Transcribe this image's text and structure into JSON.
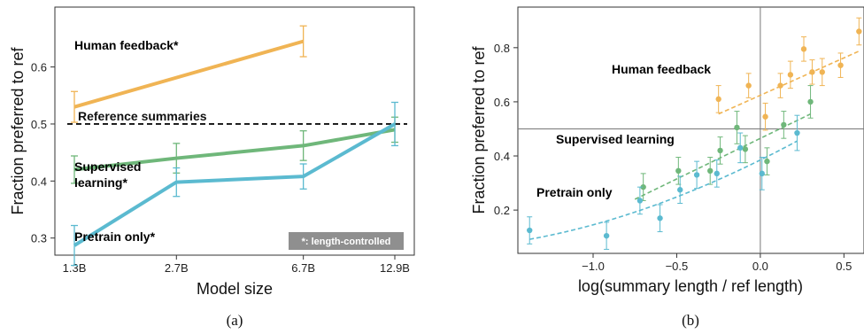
{
  "colors": {
    "human": "#f0b454",
    "supervised": "#6fb77a",
    "pretrain": "#5bbad0",
    "reference": "#111111",
    "note_bg": "#8f8f8f"
  },
  "chart_data": [
    {
      "type": "line",
      "caption": "(a)",
      "xlabel": "Model size",
      "ylabel": "Fraction preferred to ref",
      "x_scale": "log",
      "x_ticks": [
        "1.3B",
        "2.7B",
        "6.7B",
        "12.9B"
      ],
      "y_ticks": [
        0.3,
        0.4,
        0.5,
        0.6
      ],
      "ylim": [
        0.27,
        0.705
      ],
      "grid": false,
      "reference_line": {
        "y": 0.5,
        "label": "Reference summaries"
      },
      "note": "*: length-controlled",
      "series": [
        {
          "name": "Human feedback*",
          "color_key": "human",
          "x": [
            "1.3B",
            "6.7B"
          ],
          "y": [
            0.53,
            0.645
          ],
          "err": [
            0.027,
            0.027
          ]
        },
        {
          "name": "Supervised learning*",
          "color_key": "supervised",
          "x": [
            "1.3B",
            "2.7B",
            "6.7B",
            "12.9B"
          ],
          "y": [
            0.42,
            0.44,
            0.462,
            0.49
          ],
          "err": [
            0.024,
            0.026,
            0.026,
            0.022
          ]
        },
        {
          "name": "Pretrain only*",
          "color_key": "pretrain",
          "x": [
            "1.3B",
            "2.7B",
            "6.7B",
            "12.9B"
          ],
          "y": [
            0.287,
            0.398,
            0.408,
            0.5
          ],
          "err": [
            0.035,
            0.025,
            0.022,
            0.038
          ]
        }
      ]
    },
    {
      "type": "scatter",
      "caption": "(b)",
      "xlabel": "log(summary length / ref length)",
      "ylabel": "Fraction preferred to ref",
      "xlim": [
        -1.45,
        0.62
      ],
      "ylim": [
        0.04,
        0.95
      ],
      "x_ticks": [
        -1.0,
        -0.5,
        0.0,
        0.5
      ],
      "x_tick_labels": [
        "−1.0",
        "−0.5",
        "0.0",
        "0.5"
      ],
      "y_ticks": [
        0.2,
        0.4,
        0.6,
        0.8
      ],
      "y_tick_labels": [
        "0.2",
        "0.4",
        "0.6",
        "0.8"
      ],
      "reference_lines": {
        "x": 0.0,
        "y": 0.5
      },
      "grid": false,
      "series": [
        {
          "name": "Human feedback",
          "color_key": "human",
          "points": [
            [
              -0.25,
              0.61
            ],
            [
              -0.07,
              0.66
            ],
            [
              0.03,
              0.545
            ],
            [
              0.12,
              0.66
            ],
            [
              0.18,
              0.7
            ],
            [
              0.26,
              0.795
            ],
            [
              0.31,
              0.71
            ],
            [
              0.37,
              0.71
            ],
            [
              0.48,
              0.735
            ],
            [
              0.59,
              0.86
            ]
          ],
          "err": [
            0.05,
            0.045,
            0.05,
            0.045,
            0.05,
            0.045,
            0.045,
            0.05,
            0.045,
            0.05
          ],
          "fit": [
            [
              -0.25,
              0.555
            ],
            [
              0.6,
              0.79
            ]
          ]
        },
        {
          "name": "Supervised learning",
          "color_key": "supervised",
          "points": [
            [
              -0.7,
              0.285
            ],
            [
              -0.49,
              0.345
            ],
            [
              -0.3,
              0.345
            ],
            [
              -0.24,
              0.42
            ],
            [
              -0.14,
              0.505
            ],
            [
              -0.09,
              0.425
            ],
            [
              0.04,
              0.38
            ],
            [
              0.14,
              0.515
            ],
            [
              0.3,
              0.6
            ]
          ],
          "err": [
            0.05,
            0.05,
            0.05,
            0.05,
            0.06,
            0.05,
            0.05,
            0.05,
            0.06
          ],
          "fit": [
            [
              -0.75,
              0.24
            ],
            [
              0.3,
              0.555
            ]
          ]
        },
        {
          "name": "Pretrain only",
          "color_key": "pretrain",
          "points": [
            [
              -1.38,
              0.125
            ],
            [
              -0.92,
              0.105
            ],
            [
              -0.72,
              0.235
            ],
            [
              -0.6,
              0.17
            ],
            [
              -0.48,
              0.275
            ],
            [
              -0.38,
              0.33
            ],
            [
              -0.26,
              0.335
            ],
            [
              -0.12,
              0.43
            ],
            [
              0.01,
              0.335
            ],
            [
              0.22,
              0.485
            ]
          ],
          "err": [
            0.05,
            0.05,
            0.05,
            0.05,
            0.05,
            0.05,
            0.05,
            0.055,
            0.06,
            0.065
          ],
          "fit_type": "quadratic",
          "fit": [
            [
              -1.38,
              0.092
            ],
            [
              -0.6,
              0.225
            ],
            [
              0.22,
              0.455
            ]
          ]
        }
      ]
    }
  ]
}
